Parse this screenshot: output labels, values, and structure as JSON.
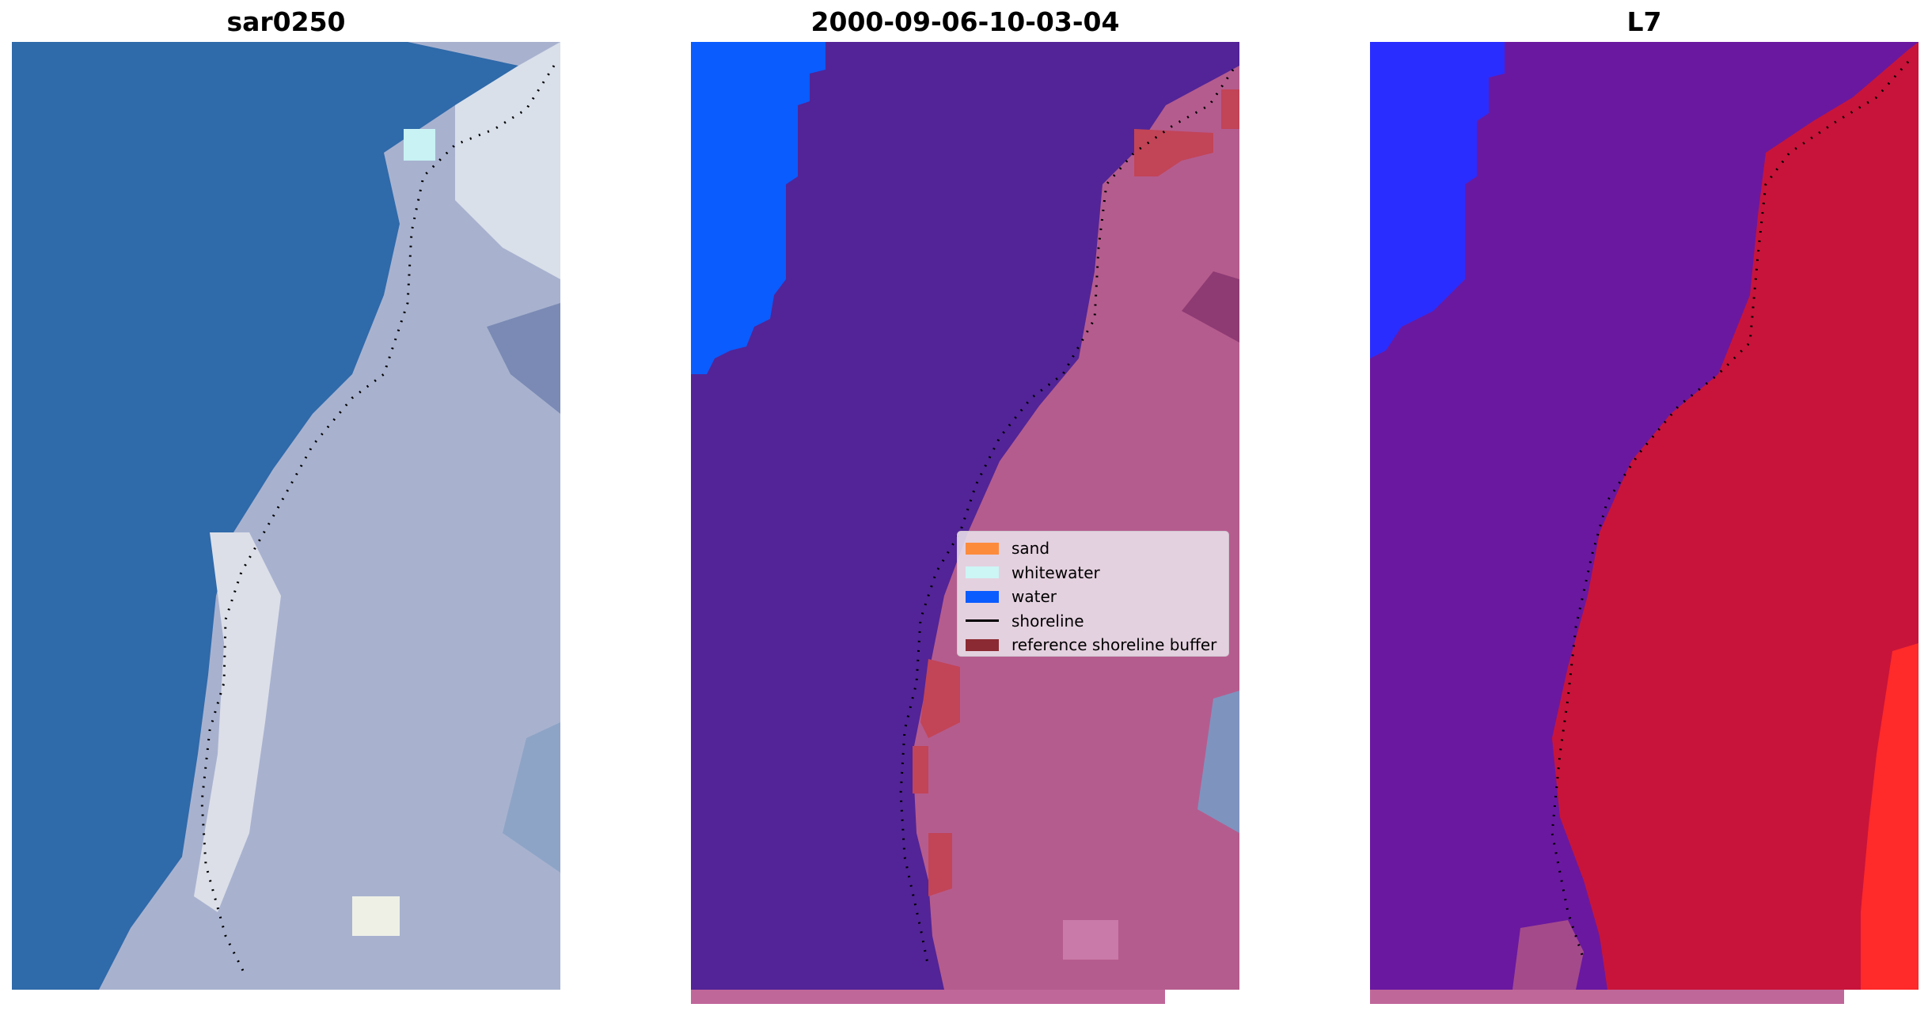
{
  "panels": [
    {
      "title": "sar0250",
      "style": "rgb"
    },
    {
      "title": "2000-09-06-10-03-04",
      "style": "classified"
    },
    {
      "title": "L7",
      "style": "index"
    }
  ],
  "legend": {
    "items": [
      {
        "label": "sand",
        "color": "#fd8b3c",
        "kind": "patch"
      },
      {
        "label": "whitewater",
        "color": "#ccf5f5",
        "kind": "patch"
      },
      {
        "label": "water",
        "color": "#0a5cff",
        "kind": "patch"
      },
      {
        "label": "shoreline",
        "color": "#000000",
        "kind": "line"
      },
      {
        "label": "reference shoreline buffer",
        "color": "#8b2a32",
        "kind": "patch"
      }
    ]
  },
  "colors": {
    "sea": "#2f6aaa",
    "classified_background": "#522497",
    "land_overlay": "#b55c8e",
    "index_water": "#6a18a0",
    "index_land": "#c8143a"
  }
}
